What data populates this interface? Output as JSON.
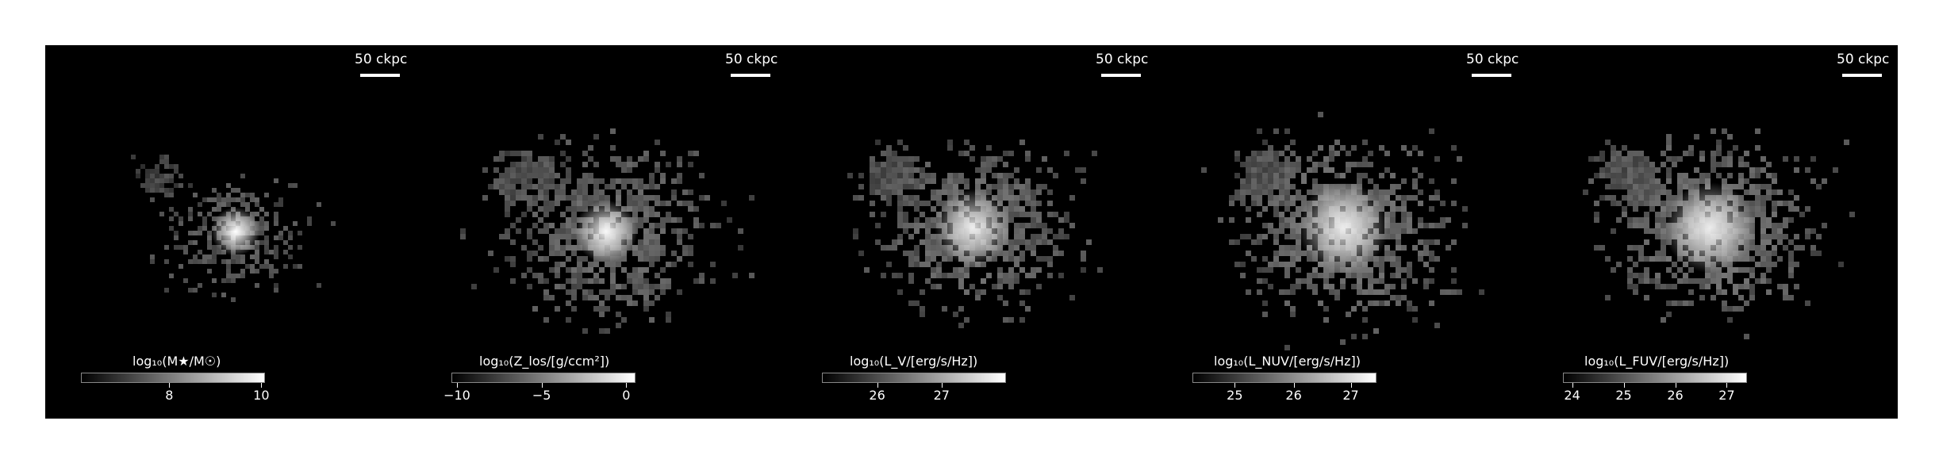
{
  "panels": [
    {
      "scale_label": "50 ckpc",
      "colorbar_label": "log₁₀(M★/M☉)",
      "ticks": [
        {
          "label": "8",
          "frac": 0.48
        },
        {
          "label": "10",
          "frac": 0.98
        }
      ]
    },
    {
      "scale_label": "50 ckpc",
      "colorbar_label": "log₁₀(Z_los/[g/ccm²])",
      "ticks": [
        {
          "label": "−10",
          "frac": 0.03
        },
        {
          "label": "−5",
          "frac": 0.49
        },
        {
          "label": "0",
          "frac": 0.95
        }
      ]
    },
    {
      "scale_label": "50 ckpc",
      "colorbar_label": "log₁₀(L_V/[erg/s/Hz])",
      "ticks": [
        {
          "label": "26",
          "frac": 0.3
        },
        {
          "label": "27",
          "frac": 0.65
        }
      ]
    },
    {
      "scale_label": "50 ckpc",
      "colorbar_label": "log₁₀(L_NUV/[erg/s/Hz])",
      "ticks": [
        {
          "label": "25",
          "frac": 0.23
        },
        {
          "label": "26",
          "frac": 0.55
        },
        {
          "label": "27",
          "frac": 0.86
        }
      ]
    },
    {
      "scale_label": "50 ckpc",
      "colorbar_label": "log₁₀(L_FUV/[erg/s/Hz])",
      "ticks": [
        {
          "label": "24",
          "frac": 0.05
        },
        {
          "label": "25",
          "frac": 0.33
        },
        {
          "label": "26",
          "frac": 0.61
        },
        {
          "label": "27",
          "frac": 0.89
        }
      ]
    }
  ]
}
